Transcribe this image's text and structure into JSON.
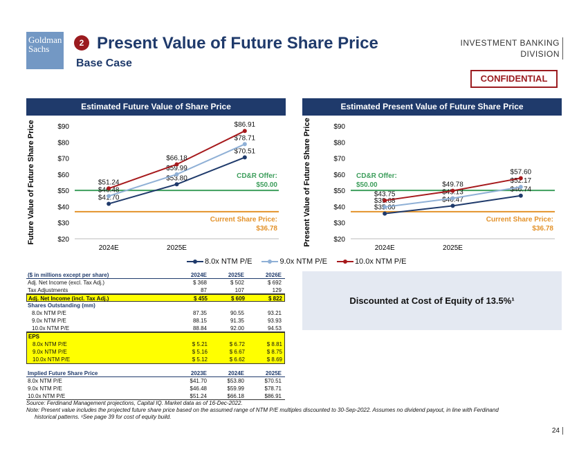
{
  "logo": {
    "line1": "Goldman",
    "line2": "Sachs"
  },
  "header": {
    "step": "2",
    "title": "Present Value of Future Share Price",
    "subtitle": "Base Case",
    "division_line1": "INVESTMENT BANKING",
    "division_line2": "DIVISION",
    "confidential": "CONFIDENTIAL"
  },
  "left_title": "Estimated Future Value of Share Price",
  "right_title": "Estimated Present Value of Future Share Price",
  "colors": {
    "s8": "#1f3a6b",
    "s9": "#8fb0d6",
    "s10": "#a6191c",
    "offer": "#3d9e5c",
    "current": "#e3922a"
  },
  "chart_data": [
    {
      "type": "line",
      "title": "Estimated Future Value of Share Price",
      "ylabel": "Future Value of Future Share Price",
      "categories": [
        "2024E",
        "2025E",
        ""
      ],
      "ylim": [
        20,
        90
      ],
      "yticks": [
        "$20",
        "$30",
        "$40",
        "$50",
        "$60",
        "$70",
        "$80",
        "$90"
      ],
      "series": [
        {
          "name": "8.0x NTM P/E",
          "values": [
            41.7,
            53.8,
            70.51
          ],
          "labels": [
            "$41.70",
            "$53.80",
            "$70.51"
          ]
        },
        {
          "name": "9.0x NTM P/E",
          "values": [
            46.48,
            59.99,
            78.71
          ],
          "labels": [
            "$46.48",
            "$59.99",
            "$78.71"
          ]
        },
        {
          "name": "10.0x NTM P/E",
          "values": [
            51.24,
            66.18,
            86.91
          ],
          "labels": [
            "$51.24",
            "$66.18",
            "$86.91"
          ]
        }
      ],
      "offer": {
        "value": 50.0,
        "label1": "CD&R Offer:",
        "label2": "$50.00"
      },
      "current": {
        "value": 36.78,
        "label1": "Current Share Price:",
        "label2": "$36.78"
      }
    },
    {
      "type": "line",
      "title": "Estimated Present Value of Future Share Price",
      "ylabel": "Present Value of Future Share Price",
      "categories": [
        "2024E",
        "2025E",
        ""
      ],
      "ylim": [
        20,
        90
      ],
      "yticks": [
        "$20",
        "$30",
        "$40",
        "$50",
        "$60",
        "$70",
        "$80",
        "$90"
      ],
      "series": [
        {
          "name": "8.0x NTM P/E",
          "values": [
            35.6,
            40.47,
            46.74
          ],
          "labels": [
            "$35.60",
            "$40.47",
            "$46.74"
          ]
        },
        {
          "name": "9.0x NTM P/E",
          "values": [
            39.68,
            45.13,
            52.17
          ],
          "labels": [
            "$39.68",
            "$45.13",
            "$52.17"
          ]
        },
        {
          "name": "10.0x NTM P/E",
          "values": [
            43.75,
            49.78,
            57.6
          ],
          "labels": [
            "$43.75",
            "$49.78",
            "$57.60"
          ]
        }
      ],
      "offer": {
        "value": 50.0,
        "label1": "CD&R Offer:",
        "label2": "$50.00"
      },
      "current": {
        "value": 36.78,
        "label1": "Current Share Price:",
        "label2": "$36.78"
      }
    }
  ],
  "legend": [
    "8.0x NTM P/E",
    "9.0x NTM P/E",
    "10.0x NTM P/E"
  ],
  "table": {
    "header": [
      "($ in millions except per share)",
      "2024E",
      "2025E",
      "2026E"
    ],
    "rows1": [
      [
        "Adj. Net Income (excl. Tax Adj.)",
        "$ 368",
        "$ 502",
        "$ 692"
      ],
      [
        "Tax Adjustments",
        "87",
        "107",
        "129"
      ]
    ],
    "total": [
      "Adj. Net Income (incl. Tax Adj.)",
      "$ 455",
      "$ 609",
      "$ 822"
    ],
    "shares_label": "Shares Outstanding (mm)",
    "shares": [
      [
        "8.0x NTM P/E",
        "87.35",
        "90.55",
        "93.21"
      ],
      [
        "9.0x NTM P/E",
        "88.15",
        "91.35",
        "93.93"
      ],
      [
        "10.0x NTM P/E",
        "88.84",
        "92.00",
        "94.53"
      ]
    ],
    "eps_label": "EPS",
    "eps": [
      [
        "8.0x NTM P/E",
        "$ 5.21",
        "$ 6.72",
        "$ 8.81"
      ],
      [
        "9.0x NTM P/E",
        "$ 5.16",
        "$ 6.67",
        "$ 8.75"
      ],
      [
        "10.0x NTM P/E",
        "$ 5.12",
        "$ 6.62",
        "$ 8.69"
      ]
    ],
    "implied_header": [
      "Implied Future Share Price",
      "2023E",
      "2024E",
      "2025E"
    ],
    "implied": [
      [
        "8.0x NTM P/E",
        "$41.70",
        "$53.80",
        "$70.51"
      ],
      [
        "9.0x NTM P/E",
        "$46.48",
        "$59.99",
        "$78.71"
      ],
      [
        "10.0x NTM P/E",
        "$51.24",
        "$66.18",
        "$86.91"
      ]
    ]
  },
  "discount_text": "Discounted at Cost of Equity of 13.5%¹",
  "source": "Source: Ferdinand Management projections, Capital IQ. Market data as of 16-Dec-2022.",
  "note1": "Note: Present value includes the projected future share price based on the assumed range of NTM P/E multiples discounted to 30-Sep-2022. Assumes no dividend payout, in line with Ferdinand",
  "note2": "historical patterns. ¹See page 39 for cost of equity build.",
  "page_number": "24"
}
